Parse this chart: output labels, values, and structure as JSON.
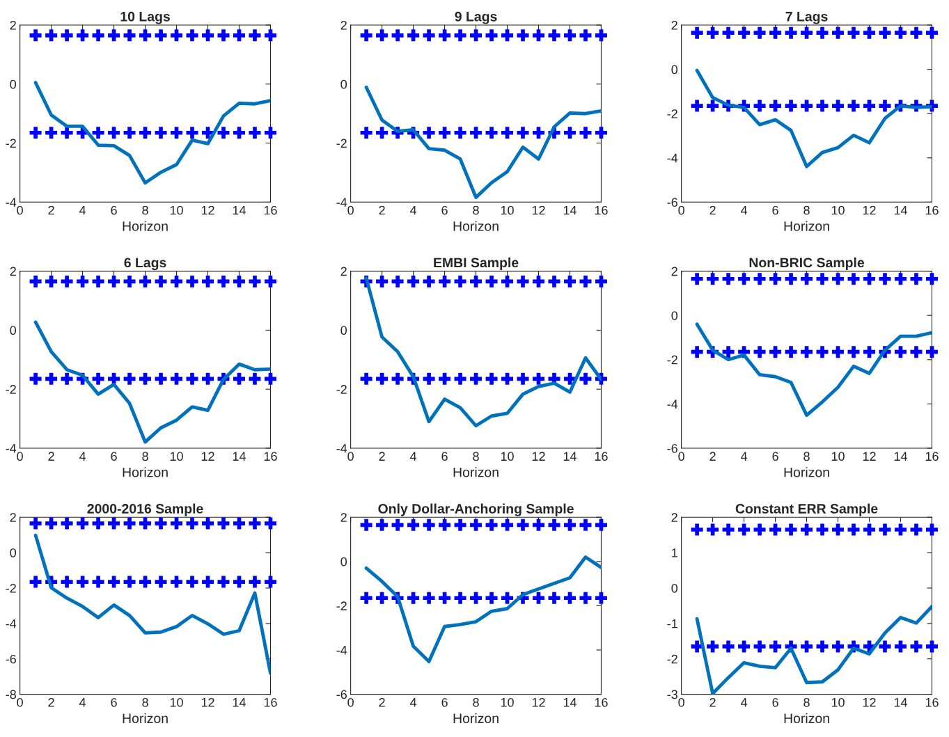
{
  "chart_data": [
    {
      "type": "line",
      "title": "10 Lags",
      "xlabel": "Horizon",
      "x": [
        1,
        2,
        3,
        4,
        5,
        6,
        7,
        8,
        9,
        10,
        11,
        12,
        13,
        14,
        15,
        16
      ],
      "xlim": [
        0,
        16
      ],
      "xticks": [
        0,
        2,
        4,
        6,
        8,
        10,
        12,
        14,
        16
      ],
      "ylim": [
        -4,
        2
      ],
      "yticks": [
        -4,
        -2,
        0,
        2
      ],
      "grid": false,
      "series": [
        {
          "color": "#0072bd",
          "values": [
            0.05,
            -1.05,
            -1.43,
            -1.43,
            -2.07,
            -2.09,
            -2.42,
            -3.35,
            -2.99,
            -2.73,
            -1.9,
            -2.02,
            -1.08,
            -0.65,
            -0.67,
            -0.56
          ]
        },
        {
          "type": "scatter",
          "marker": "cross",
          "color": "#0000ff",
          "values": [
            1.65,
            1.65,
            1.65,
            1.65,
            1.65,
            1.65,
            1.65,
            1.65,
            1.65,
            1.65,
            1.65,
            1.65,
            1.65,
            1.65,
            1.65,
            1.65
          ]
        },
        {
          "type": "scatter",
          "marker": "cross",
          "color": "#0000ff",
          "values": [
            -1.65,
            -1.65,
            -1.65,
            -1.65,
            -1.65,
            -1.65,
            -1.65,
            -1.65,
            -1.65,
            -1.65,
            -1.65,
            -1.65,
            -1.65,
            -1.65,
            -1.65,
            -1.65
          ]
        }
      ]
    },
    {
      "type": "line",
      "title": "9 Lags",
      "xlabel": "Horizon",
      "x": [
        1,
        2,
        3,
        4,
        5,
        6,
        7,
        8,
        9,
        10,
        11,
        12,
        13,
        14,
        15,
        16
      ],
      "xlim": [
        0,
        16
      ],
      "xticks": [
        0,
        2,
        4,
        6,
        8,
        10,
        12,
        14,
        16
      ],
      "ylim": [
        -4,
        2
      ],
      "yticks": [
        -4,
        -2,
        0,
        2
      ],
      "grid": false,
      "series": [
        {
          "color": "#0072bd",
          "values": [
            -0.11,
            -1.22,
            -1.6,
            -1.55,
            -2.19,
            -2.24,
            -2.54,
            -3.84,
            -3.34,
            -2.97,
            -2.14,
            -2.54,
            -1.45,
            -0.98,
            -1.0,
            -0.91
          ]
        },
        {
          "type": "scatter",
          "marker": "cross",
          "color": "#0000ff",
          "values": [
            1.65,
            1.65,
            1.65,
            1.65,
            1.65,
            1.65,
            1.65,
            1.65,
            1.65,
            1.65,
            1.65,
            1.65,
            1.65,
            1.65,
            1.65,
            1.65
          ]
        },
        {
          "type": "scatter",
          "marker": "cross",
          "color": "#0000ff",
          "values": [
            -1.65,
            -1.65,
            -1.65,
            -1.65,
            -1.65,
            -1.65,
            -1.65,
            -1.65,
            -1.65,
            -1.65,
            -1.65,
            -1.65,
            -1.65,
            -1.65,
            -1.65,
            -1.65
          ]
        }
      ]
    },
    {
      "type": "line",
      "title": "7 Lags",
      "xlabel": "Horizon",
      "x": [
        1,
        2,
        3,
        4,
        5,
        6,
        7,
        8,
        9,
        10,
        11,
        12,
        13,
        14,
        15,
        16
      ],
      "xlim": [
        0,
        16
      ],
      "xticks": [
        0,
        2,
        4,
        6,
        8,
        10,
        12,
        14,
        16
      ],
      "ylim": [
        -6,
        2
      ],
      "yticks": [
        -6,
        -4,
        -2,
        0,
        2
      ],
      "grid": false,
      "series": [
        {
          "color": "#0072bd",
          "values": [
            -0.05,
            -1.28,
            -1.62,
            -1.72,
            -2.5,
            -2.28,
            -2.76,
            -4.39,
            -3.76,
            -3.54,
            -2.98,
            -3.32,
            -2.22,
            -1.65,
            -1.72,
            -1.69
          ]
        },
        {
          "type": "scatter",
          "marker": "cross",
          "color": "#0000ff",
          "values": [
            1.65,
            1.65,
            1.65,
            1.65,
            1.65,
            1.65,
            1.65,
            1.65,
            1.65,
            1.65,
            1.65,
            1.65,
            1.65,
            1.65,
            1.65,
            1.65
          ]
        },
        {
          "type": "scatter",
          "marker": "cross",
          "color": "#0000ff",
          "values": [
            -1.65,
            -1.65,
            -1.65,
            -1.65,
            -1.65,
            -1.65,
            -1.65,
            -1.65,
            -1.65,
            -1.65,
            -1.65,
            -1.65,
            -1.65,
            -1.65,
            -1.65,
            -1.65
          ]
        }
      ]
    },
    {
      "type": "line",
      "title": "6 Lags",
      "xlabel": "Horizon",
      "x": [
        1,
        2,
        3,
        4,
        5,
        6,
        7,
        8,
        9,
        10,
        11,
        12,
        13,
        14,
        15,
        16
      ],
      "xlim": [
        0,
        16
      ],
      "xticks": [
        0,
        2,
        4,
        6,
        8,
        10,
        12,
        14,
        16
      ],
      "ylim": [
        -4,
        2
      ],
      "yticks": [
        -4,
        -2,
        0,
        2
      ],
      "grid": false,
      "series": [
        {
          "color": "#0072bd",
          "values": [
            0.27,
            -0.73,
            -1.34,
            -1.53,
            -2.17,
            -1.84,
            -2.48,
            -3.79,
            -3.31,
            -3.05,
            -2.6,
            -2.72,
            -1.67,
            -1.15,
            -1.34,
            -1.32
          ]
        },
        {
          "type": "scatter",
          "marker": "cross",
          "color": "#0000ff",
          "values": [
            1.65,
            1.65,
            1.65,
            1.65,
            1.65,
            1.65,
            1.65,
            1.65,
            1.65,
            1.65,
            1.65,
            1.65,
            1.65,
            1.65,
            1.65,
            1.65
          ]
        },
        {
          "type": "scatter",
          "marker": "cross",
          "color": "#0000ff",
          "values": [
            -1.65,
            -1.65,
            -1.65,
            -1.65,
            -1.65,
            -1.65,
            -1.65,
            -1.65,
            -1.65,
            -1.65,
            -1.65,
            -1.65,
            -1.65,
            -1.65,
            -1.65,
            -1.65
          ]
        }
      ]
    },
    {
      "type": "line",
      "title": "EMBI Sample",
      "xlabel": "Horizon",
      "x": [
        1,
        2,
        3,
        4,
        5,
        6,
        7,
        8,
        9,
        10,
        11,
        12,
        13,
        14,
        15,
        16
      ],
      "xlim": [
        0,
        16
      ],
      "xticks": [
        0,
        2,
        4,
        6,
        8,
        10,
        12,
        14,
        16
      ],
      "ylim": [
        -4,
        2
      ],
      "yticks": [
        -4,
        -2,
        0,
        2
      ],
      "grid": false,
      "series": [
        {
          "color": "#0072bd",
          "values": [
            1.76,
            -0.23,
            -0.73,
            -1.58,
            -3.1,
            -2.34,
            -2.63,
            -3.24,
            -2.91,
            -2.82,
            -2.17,
            -1.91,
            -1.8,
            -2.1,
            -0.94,
            -1.67
          ]
        },
        {
          "type": "scatter",
          "marker": "cross",
          "color": "#0000ff",
          "values": [
            1.65,
            1.65,
            1.65,
            1.65,
            1.65,
            1.65,
            1.65,
            1.65,
            1.65,
            1.65,
            1.65,
            1.65,
            1.65,
            1.65,
            1.65,
            1.65
          ]
        },
        {
          "type": "scatter",
          "marker": "cross",
          "color": "#0000ff",
          "values": [
            -1.65,
            -1.65,
            -1.65,
            -1.65,
            -1.65,
            -1.65,
            -1.65,
            -1.65,
            -1.65,
            -1.65,
            -1.65,
            -1.65,
            -1.65,
            -1.65,
            -1.65,
            -1.65
          ]
        }
      ]
    },
    {
      "type": "line",
      "title": "Non-BRIC Sample",
      "xlabel": "Horizon",
      "x": [
        1,
        2,
        3,
        4,
        5,
        6,
        7,
        8,
        9,
        10,
        11,
        12,
        13,
        14,
        15,
        16
      ],
      "xlim": [
        0,
        16
      ],
      "xticks": [
        0,
        2,
        4,
        6,
        8,
        10,
        12,
        14,
        16
      ],
      "ylim": [
        -6,
        2
      ],
      "yticks": [
        -6,
        -4,
        -2,
        0,
        2
      ],
      "grid": false,
      "series": [
        {
          "color": "#0072bd",
          "values": [
            -0.4,
            -1.57,
            -2.0,
            -1.79,
            -2.68,
            -2.77,
            -3.03,
            -4.51,
            -3.91,
            -3.25,
            -2.3,
            -2.62,
            -1.57,
            -0.94,
            -0.94,
            -0.78
          ]
        },
        {
          "type": "scatter",
          "marker": "cross",
          "color": "#0000ff",
          "values": [
            1.65,
            1.65,
            1.65,
            1.65,
            1.65,
            1.65,
            1.65,
            1.65,
            1.65,
            1.65,
            1.65,
            1.65,
            1.65,
            1.65,
            1.65,
            1.65
          ]
        },
        {
          "type": "scatter",
          "marker": "cross",
          "color": "#0000ff",
          "values": [
            -1.65,
            -1.65,
            -1.65,
            -1.65,
            -1.65,
            -1.65,
            -1.65,
            -1.65,
            -1.65,
            -1.65,
            -1.65,
            -1.65,
            -1.65,
            -1.65,
            -1.65,
            -1.65
          ]
        }
      ]
    },
    {
      "type": "line",
      "title": "2000-2016 Sample",
      "xlabel": "Horizon",
      "x": [
        1,
        2,
        3,
        4,
        5,
        6,
        7,
        8,
        9,
        10,
        11,
        12,
        13,
        14,
        15,
        16
      ],
      "xlim": [
        0,
        16
      ],
      "xticks": [
        0,
        2,
        4,
        6,
        8,
        10,
        12,
        14,
        16
      ],
      "ylim": [
        -8,
        2
      ],
      "yticks": [
        -8,
        -6,
        -4,
        -2,
        0,
        2
      ],
      "grid": false,
      "series": [
        {
          "color": "#0072bd",
          "values": [
            0.98,
            -1.98,
            -2.57,
            -3.04,
            -3.67,
            -2.96,
            -3.55,
            -4.53,
            -4.49,
            -4.18,
            -3.55,
            -4.02,
            -4.61,
            -4.41,
            -2.28,
            -6.81
          ]
        },
        {
          "type": "scatter",
          "marker": "cross",
          "color": "#0000ff",
          "values": [
            1.65,
            1.65,
            1.65,
            1.65,
            1.65,
            1.65,
            1.65,
            1.65,
            1.65,
            1.65,
            1.65,
            1.65,
            1.65,
            1.65,
            1.65,
            1.65
          ]
        },
        {
          "type": "scatter",
          "marker": "cross",
          "color": "#0000ff",
          "values": [
            -1.65,
            -1.65,
            -1.65,
            -1.65,
            -1.65,
            -1.65,
            -1.65,
            -1.65,
            -1.65,
            -1.65,
            -1.65,
            -1.65,
            -1.65,
            -1.65,
            -1.65,
            -1.65
          ]
        }
      ]
    },
    {
      "type": "line",
      "title": "Only Dollar-Anchoring Sample",
      "xlabel": "Horizon",
      "x": [
        1,
        2,
        3,
        4,
        5,
        6,
        7,
        8,
        9,
        10,
        11,
        12,
        13,
        14,
        15,
        16
      ],
      "xlim": [
        0,
        16
      ],
      "xticks": [
        0,
        2,
        4,
        6,
        8,
        10,
        12,
        14,
        16
      ],
      "ylim": [
        -6,
        2
      ],
      "yticks": [
        -6,
        -4,
        -2,
        0,
        2
      ],
      "grid": false,
      "series": [
        {
          "color": "#0072bd",
          "values": [
            -0.3,
            -0.9,
            -1.59,
            -3.83,
            -4.52,
            -2.94,
            -2.85,
            -2.72,
            -2.25,
            -2.13,
            -1.5,
            -1.24,
            -0.99,
            -0.74,
            0.2,
            -0.27
          ]
        },
        {
          "type": "scatter",
          "marker": "cross",
          "color": "#0000ff",
          "values": [
            1.65,
            1.65,
            1.65,
            1.65,
            1.65,
            1.65,
            1.65,
            1.65,
            1.65,
            1.65,
            1.65,
            1.65,
            1.65,
            1.65,
            1.65,
            1.65
          ]
        },
        {
          "type": "scatter",
          "marker": "cross",
          "color": "#0000ff",
          "values": [
            -1.65,
            -1.65,
            -1.65,
            -1.65,
            -1.65,
            -1.65,
            -1.65,
            -1.65,
            -1.65,
            -1.65,
            -1.65,
            -1.65,
            -1.65,
            -1.65,
            -1.65,
            -1.65
          ]
        }
      ]
    },
    {
      "type": "line",
      "title": "Constant ERR Sample",
      "xlabel": "Horizon",
      "x": [
        1,
        2,
        3,
        4,
        5,
        6,
        7,
        8,
        9,
        10,
        11,
        12,
        13,
        14,
        15,
        16
      ],
      "xlim": [
        0,
        16
      ],
      "xticks": [
        0,
        2,
        4,
        6,
        8,
        10,
        12,
        14,
        16
      ],
      "ylim": [
        -3,
        2
      ],
      "yticks": [
        -3,
        -2,
        -1,
        0,
        1,
        2
      ],
      "grid": false,
      "series": [
        {
          "color": "#0072bd",
          "values": [
            -0.87,
            -2.98,
            -2.53,
            -2.11,
            -2.21,
            -2.25,
            -1.7,
            -2.67,
            -2.65,
            -2.31,
            -1.7,
            -1.86,
            -1.27,
            -0.83,
            -0.99,
            -0.52
          ]
        },
        {
          "type": "scatter",
          "marker": "cross",
          "color": "#0000ff",
          "values": [
            1.65,
            1.65,
            1.65,
            1.65,
            1.65,
            1.65,
            1.65,
            1.65,
            1.65,
            1.65,
            1.65,
            1.65,
            1.65,
            1.65,
            1.65,
            1.65
          ]
        },
        {
          "type": "scatter",
          "marker": "cross",
          "color": "#0000ff",
          "values": [
            -1.65,
            -1.65,
            -1.65,
            -1.65,
            -1.65,
            -1.65,
            -1.65,
            -1.65,
            -1.65,
            -1.65,
            -1.65,
            -1.65,
            -1.65,
            -1.65,
            -1.65,
            -1.65
          ]
        }
      ]
    }
  ]
}
